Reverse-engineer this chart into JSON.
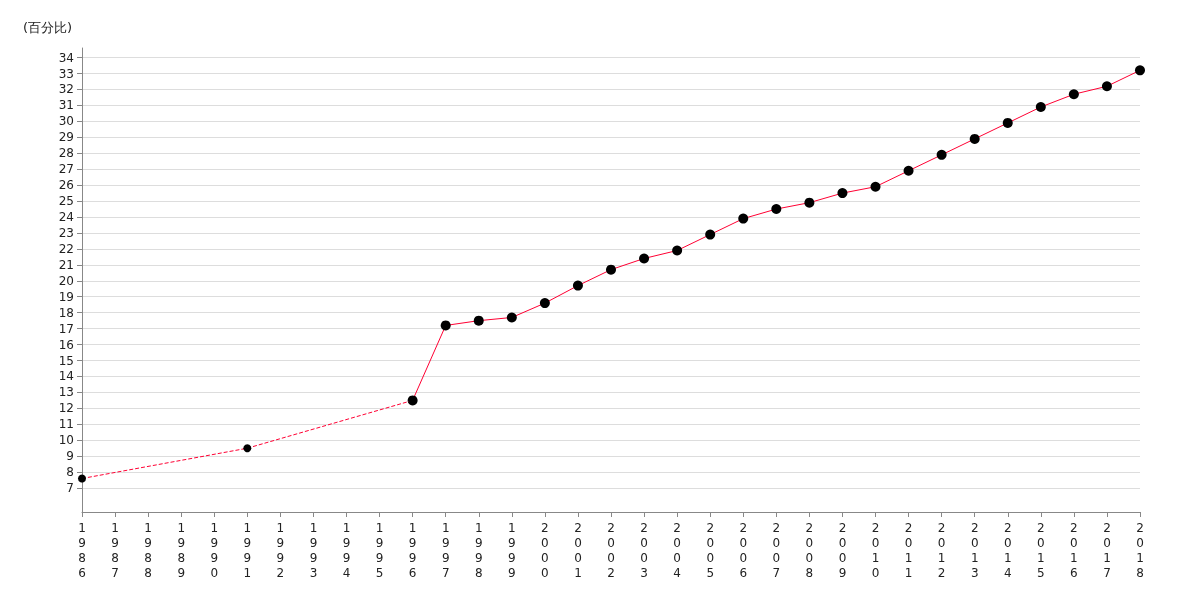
{
  "chart_data": {
    "type": "line",
    "ylabel": "(百分比)",
    "categories": [
      "1986",
      "1987",
      "1988",
      "1989",
      "1990",
      "1991",
      "1992",
      "1993",
      "1994",
      "1995",
      "1996",
      "1997",
      "1998",
      "1999",
      "2000",
      "2001",
      "2002",
      "2003",
      "2004",
      "2005",
      "2006",
      "2007",
      "2008",
      "2009",
      "2010",
      "2011",
      "2012",
      "2013",
      "2014",
      "2015",
      "2016",
      "2017",
      "2018"
    ],
    "series": [
      {
        "color": "#ff0033",
        "line_style": "dashed",
        "values": [
          7.6,
          null,
          null,
          null,
          null,
          9.5,
          null,
          null,
          null,
          null,
          12.5,
          null,
          null,
          null,
          null,
          null,
          null,
          null,
          null,
          null,
          null,
          null,
          null,
          null,
          null,
          null,
          null,
          null,
          null,
          null,
          null,
          null,
          null
        ]
      },
      {
        "color": "#ff0033",
        "line_style": "solid",
        "values": [
          null,
          null,
          null,
          null,
          null,
          null,
          null,
          null,
          null,
          null,
          12.5,
          17.2,
          17.5,
          17.7,
          18.6,
          19.7,
          20.7,
          21.4,
          21.9,
          22.9,
          23.9,
          24.5,
          24.9,
          25.5,
          25.9,
          26.9,
          27.9,
          28.9,
          29.9,
          30.9,
          31.7,
          32.2,
          33.2
        ]
      }
    ],
    "ylim": [
      5.5,
      34.6
    ],
    "yticks": [
      7,
      8,
      9,
      10,
      11,
      12,
      13,
      14,
      15,
      16,
      17,
      18,
      19,
      20,
      21,
      22,
      23,
      24,
      25,
      26,
      27,
      28,
      29,
      30,
      31,
      32,
      33,
      34
    ],
    "grid": "y",
    "marker": "circle"
  }
}
